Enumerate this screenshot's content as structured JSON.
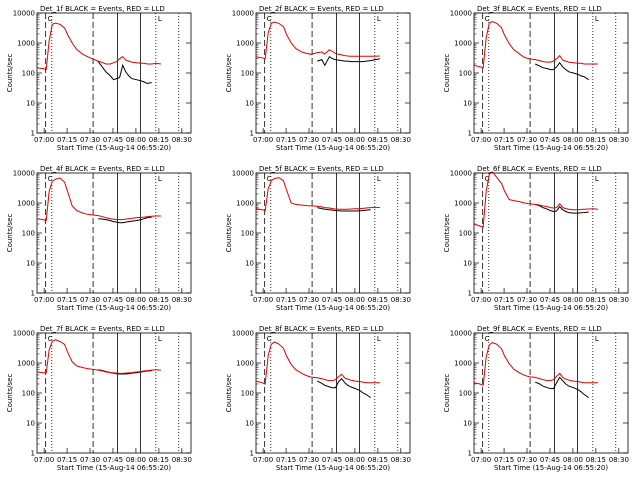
{
  "figure": {
    "colors": {
      "events": "#000000",
      "lld": "#e00000",
      "axis": "#000000"
    },
    "common": {
      "ylabel": "Counts/sec",
      "xlabel": "Start Time (15-Aug-14 06:55:20)",
      "xticks": [
        "07:00",
        "07:15",
        "07:30",
        "07:45",
        "08:00",
        "08:15",
        "08:30"
      ],
      "yticks": [
        "1",
        "10",
        "100",
        "1000",
        "10000"
      ],
      "ylim": [
        1,
        10000
      ],
      "yscale": "log",
      "xlim_minutes": [
        "06:55:20",
        "08:36:00"
      ],
      "markers": [
        "C",
        "L"
      ]
    },
    "vlines": {
      "dashed": [
        "07:01:00",
        "07:32:00"
      ],
      "dotted": [
        "07:05:00",
        "08:13:00",
        "08:28:00"
      ],
      "solid": [
        "07:48:00",
        "08:03:00"
      ]
    }
  },
  "chart_data": [
    {
      "type": "line",
      "title": "Det_1f BLACK = Events, RED = LLD",
      "x_minutes": [
        0,
        4,
        6,
        8,
        10,
        12,
        15,
        18,
        20,
        23,
        26,
        30,
        33,
        36,
        40,
        43,
        45,
        48,
        50,
        52,
        54,
        56,
        58,
        60,
        62,
        65,
        68,
        70,
        72,
        75,
        78,
        81
      ],
      "series": [
        {
          "name": "Events",
          "values": [
            null,
            null,
            null,
            null,
            null,
            null,
            null,
            null,
            null,
            null,
            null,
            null,
            null,
            null,
            240,
            150,
            110,
            80,
            60,
            65,
            70,
            180,
            110,
            80,
            65,
            60,
            55,
            50,
            45,
            48,
            null,
            null
          ]
        },
        {
          "name": "LLD",
          "values": [
            150,
            140,
            130,
            1200,
            4200,
            4600,
            4200,
            3200,
            1900,
            1000,
            600,
            420,
            350,
            300,
            250,
            220,
            200,
            200,
            220,
            240,
            300,
            350,
            270,
            250,
            230,
            220,
            210,
            210,
            200,
            200,
            210,
            200
          ]
        }
      ]
    },
    {
      "type": "line",
      "title": "Det_2f BLACK = Events, RED = LLD",
      "x_minutes": [
        0,
        4,
        6,
        8,
        10,
        12,
        15,
        18,
        20,
        23,
        26,
        30,
        33,
        36,
        40,
        43,
        45,
        48,
        50,
        52,
        54,
        56,
        58,
        60,
        62,
        65,
        68,
        70,
        72,
        75,
        78,
        81
      ],
      "series": [
        {
          "name": "Events",
          "values": [
            null,
            null,
            null,
            null,
            null,
            null,
            null,
            null,
            null,
            null,
            null,
            null,
            null,
            null,
            250,
            280,
            180,
            350,
            300,
            280,
            270,
            260,
            250,
            250,
            240,
            240,
            240,
            240,
            250,
            260,
            280,
            300
          ]
        },
        {
          "name": "LLD",
          "values": [
            350,
            320,
            300,
            2200,
            4500,
            5000,
            4500,
            3500,
            1900,
            1000,
            650,
            500,
            450,
            420,
            480,
            500,
            430,
            600,
            520,
            450,
            420,
            400,
            380,
            370,
            360,
            360,
            360,
            360,
            360,
            360,
            360,
            370
          ]
        }
      ]
    },
    {
      "type": "line",
      "title": "Det_3f BLACK = Events, RED = LLD",
      "x_minutes": [
        0,
        4,
        6,
        8,
        10,
        12,
        15,
        18,
        20,
        23,
        26,
        30,
        33,
        36,
        40,
        43,
        45,
        48,
        50,
        52,
        54,
        56,
        58,
        60,
        62,
        65,
        68,
        70,
        72,
        75,
        78,
        81
      ],
      "series": [
        {
          "name": "Events",
          "values": [
            null,
            null,
            null,
            null,
            null,
            null,
            null,
            null,
            null,
            null,
            null,
            null,
            null,
            null,
            200,
            170,
            150,
            140,
            130,
            130,
            160,
            220,
            160,
            130,
            110,
            100,
            90,
            80,
            75,
            60,
            null,
            null
          ]
        },
        {
          "name": "LLD",
          "values": [
            180,
            160,
            150,
            1500,
            4600,
            5200,
            4500,
            3200,
            1800,
            950,
            600,
            420,
            330,
            300,
            280,
            260,
            240,
            230,
            230,
            250,
            300,
            380,
            270,
            250,
            230,
            220,
            210,
            210,
            200,
            200,
            200,
            200
          ]
        }
      ]
    },
    {
      "type": "line",
      "title": "Det_4f BLACK = Events, RED = LLD",
      "x_minutes": [
        0,
        4,
        6,
        8,
        10,
        12,
        15,
        18,
        20,
        23,
        26,
        30,
        33,
        36,
        40,
        43,
        45,
        48,
        50,
        52,
        54,
        56,
        58,
        60,
        62,
        65,
        68,
        70,
        72,
        75,
        78,
        81
      ],
      "series": [
        {
          "name": "Events",
          "values": [
            null,
            null,
            null,
            null,
            null,
            null,
            null,
            null,
            null,
            null,
            null,
            null,
            null,
            null,
            300,
            290,
            280,
            260,
            240,
            230,
            220,
            220,
            230,
            240,
            250,
            260,
            280,
            300,
            320,
            340,
            null,
            null
          ]
        },
        {
          "name": "LLD",
          "values": [
            300,
            280,
            260,
            2500,
            5200,
            6200,
            6800,
            5000,
            2400,
            800,
            560,
            460,
            420,
            400,
            380,
            350,
            320,
            300,
            290,
            280,
            280,
            280,
            290,
            300,
            310,
            320,
            330,
            340,
            350,
            360,
            370,
            370
          ]
        }
      ]
    },
    {
      "type": "line",
      "title": "Det_5f BLACK = Events, RED = LLD",
      "x_minutes": [
        0,
        4,
        6,
        8,
        10,
        12,
        15,
        18,
        20,
        23,
        26,
        30,
        33,
        36,
        40,
        43,
        45,
        48,
        50,
        52,
        54,
        56,
        58,
        60,
        62,
        65,
        68,
        70,
        72,
        75,
        78,
        81
      ],
      "series": [
        {
          "name": "Events",
          "values": [
            null,
            null,
            null,
            null,
            null,
            null,
            null,
            null,
            null,
            null,
            null,
            null,
            null,
            null,
            700,
            650,
            620,
            600,
            580,
            560,
            550,
            540,
            540,
            540,
            540,
            540,
            550,
            560,
            580,
            600,
            null,
            null
          ]
        },
        {
          "name": "LLD",
          "values": [
            650,
            600,
            560,
            3000,
            5500,
            6500,
            7000,
            5500,
            2700,
            1000,
            900,
            850,
            820,
            800,
            780,
            740,
            700,
            680,
            650,
            630,
            620,
            620,
            620,
            620,
            630,
            640,
            650,
            660,
            680,
            700,
            720,
            700
          ]
        }
      ]
    },
    {
      "type": "line",
      "title": "Det_6f BLACK = Events, RED = LLD",
      "x_minutes": [
        0,
        4,
        6,
        8,
        10,
        12,
        15,
        18,
        20,
        23,
        26,
        30,
        33,
        36,
        40,
        43,
        45,
        48,
        50,
        52,
        54,
        56,
        58,
        60,
        62,
        65,
        68,
        70,
        72,
        75,
        78,
        81
      ],
      "series": [
        {
          "name": "Events",
          "values": [
            null,
            null,
            null,
            null,
            null,
            null,
            null,
            null,
            null,
            null,
            null,
            null,
            null,
            null,
            900,
            800,
            700,
            620,
            560,
            520,
            540,
            750,
            600,
            520,
            480,
            460,
            460,
            470,
            480,
            500,
            null,
            null
          ]
        },
        {
          "name": "LLD",
          "values": [
            200,
            170,
            160,
            2500,
            9000,
            11000,
            7000,
            4500,
            2500,
            1300,
            1200,
            1100,
            1000,
            950,
            900,
            850,
            800,
            750,
            700,
            680,
            700,
            950,
            700,
            650,
            620,
            600,
            600,
            610,
            620,
            630,
            640,
            620
          ]
        }
      ]
    },
    {
      "type": "line",
      "title": "Det_7f BLACK = Events, RED = LLD",
      "x_minutes": [
        0,
        4,
        6,
        8,
        10,
        12,
        15,
        18,
        20,
        23,
        26,
        30,
        33,
        36,
        40,
        43,
        45,
        48,
        50,
        52,
        54,
        56,
        58,
        60,
        62,
        65,
        68,
        70,
        72,
        75,
        78,
        81
      ],
      "series": [
        {
          "name": "Events",
          "values": [
            null,
            null,
            null,
            null,
            null,
            null,
            null,
            null,
            null,
            null,
            null,
            null,
            null,
            null,
            600,
            560,
            520,
            480,
            460,
            440,
            430,
            430,
            430,
            440,
            460,
            480,
            500,
            520,
            540,
            560,
            null,
            null
          ]
        },
        {
          "name": "LLD",
          "values": [
            500,
            480,
            460,
            2800,
            5200,
            6000,
            5200,
            4200,
            2300,
            1100,
            800,
            700,
            650,
            620,
            580,
            540,
            500,
            480,
            470,
            460,
            450,
            450,
            460,
            470,
            480,
            500,
            520,
            540,
            560,
            580,
            600,
            580
          ]
        }
      ]
    },
    {
      "type": "line",
      "title": "Det_8f BLACK = Events, RED = LLD",
      "x_minutes": [
        0,
        4,
        6,
        8,
        10,
        12,
        15,
        18,
        20,
        23,
        26,
        30,
        33,
        36,
        40,
        43,
        45,
        48,
        50,
        52,
        54,
        56,
        58,
        60,
        62,
        65,
        68,
        70,
        72,
        75,
        78,
        81
      ],
      "series": [
        {
          "name": "Events",
          "values": [
            null,
            null,
            null,
            null,
            null,
            null,
            null,
            null,
            null,
            null,
            null,
            null,
            null,
            null,
            250,
            210,
            180,
            160,
            150,
            150,
            240,
            300,
            220,
            180,
            160,
            140,
            120,
            100,
            90,
            70,
            null,
            null
          ]
        },
        {
          "name": "LLD",
          "values": [
            250,
            220,
            200,
            1800,
            4200,
            5000,
            4300,
            3100,
            1700,
            900,
            600,
            450,
            380,
            340,
            320,
            300,
            280,
            260,
            260,
            280,
            350,
            420,
            320,
            290,
            270,
            250,
            240,
            230,
            220,
            220,
            220,
            220
          ]
        }
      ]
    },
    {
      "type": "line",
      "title": "Det_9f BLACK = Events, RED = LLD",
      "x_minutes": [
        0,
        4,
        6,
        8,
        10,
        12,
        15,
        18,
        20,
        23,
        26,
        30,
        33,
        36,
        40,
        43,
        45,
        48,
        50,
        52,
        54,
        56,
        58,
        60,
        62,
        65,
        68,
        70,
        72,
        75,
        78,
        81
      ],
      "series": [
        {
          "name": "Events",
          "values": [
            null,
            null,
            null,
            null,
            null,
            null,
            null,
            null,
            null,
            null,
            null,
            null,
            null,
            null,
            230,
            200,
            170,
            150,
            140,
            140,
            220,
            330,
            260,
            200,
            170,
            150,
            130,
            110,
            90,
            70,
            null,
            null
          ]
        },
        {
          "name": "LLD",
          "values": [
            220,
            200,
            180,
            1600,
            4000,
            4800,
            4200,
            3000,
            1700,
            950,
            620,
            460,
            390,
            350,
            330,
            300,
            280,
            260,
            260,
            280,
            360,
            450,
            330,
            290,
            270,
            250,
            240,
            230,
            220,
            220,
            220,
            220
          ]
        }
      ]
    }
  ]
}
